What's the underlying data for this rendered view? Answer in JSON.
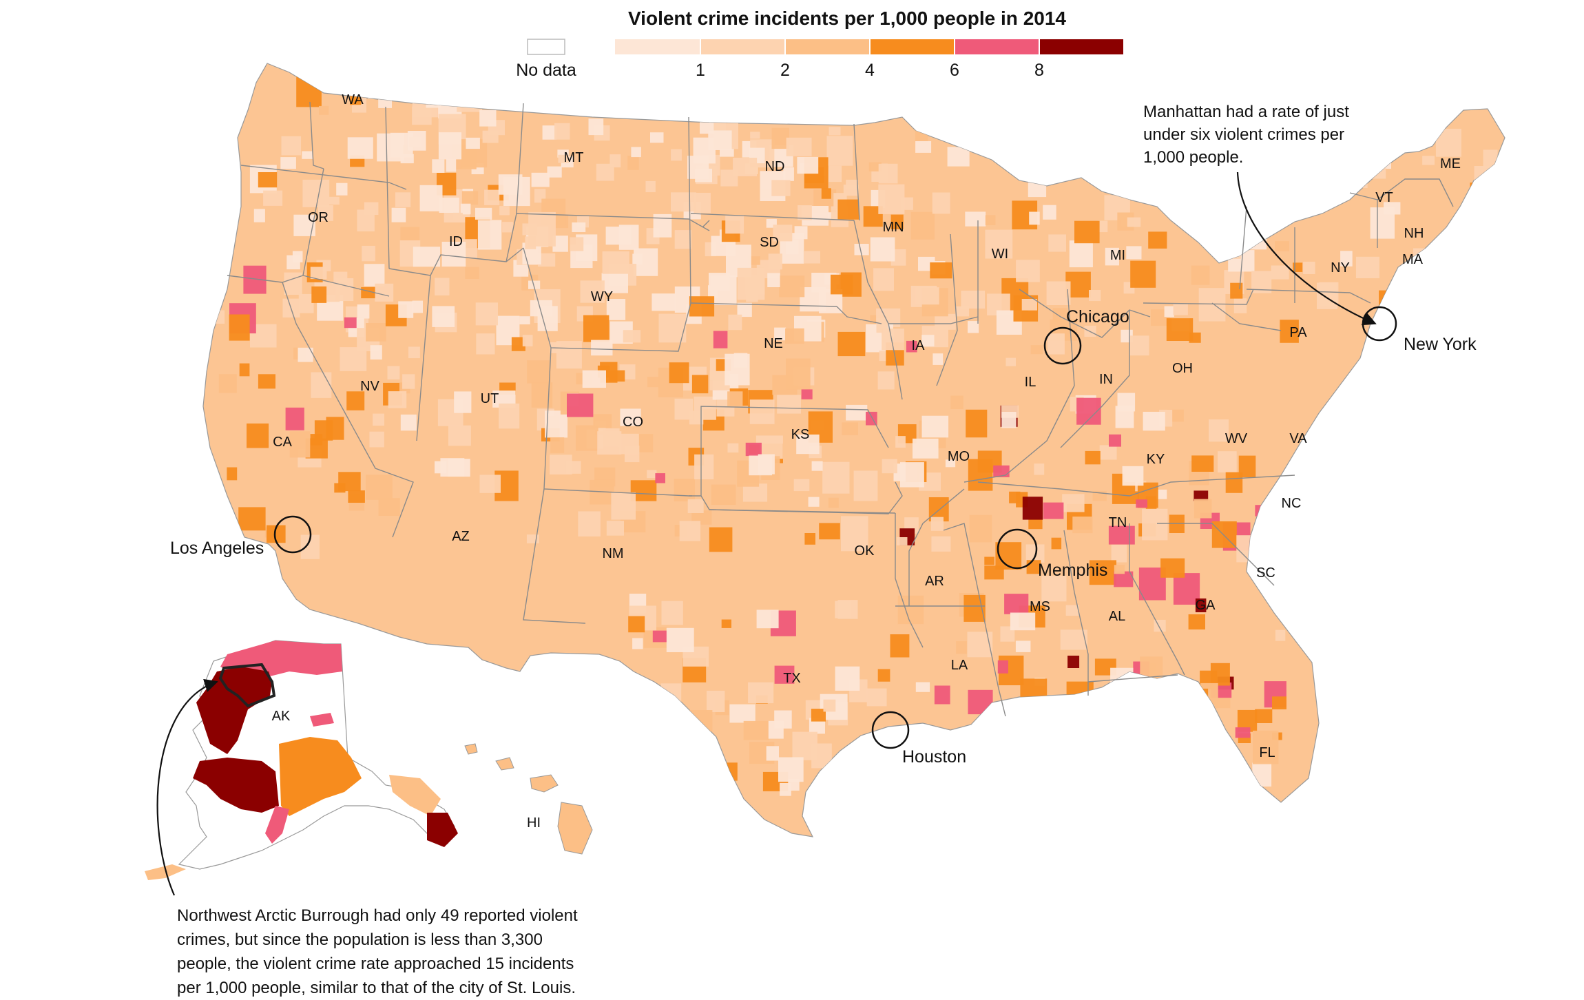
{
  "title": "Violent crime incidents per 1,000 people in 2014",
  "legend": {
    "no_data_label": "No data",
    "ticks": [
      "1",
      "2",
      "4",
      "6",
      "8"
    ],
    "bins": [
      {
        "range": "0–1",
        "color": "#fde6d6"
      },
      {
        "range": "1–2",
        "color": "#fdd3b0"
      },
      {
        "range": "2–4",
        "color": "#fcbf86"
      },
      {
        "range": "4–6",
        "color": "#f78c1e"
      },
      {
        "range": "6–8",
        "color": "#ef5a79"
      },
      {
        "range": "8+",
        "color": "#8b0000"
      }
    ],
    "no_data_color": "#ffffff"
  },
  "states": [
    "WA",
    "MT",
    "ND",
    "OR",
    "ID",
    "SD",
    "MN",
    "WI",
    "MI",
    "WY",
    "NE",
    "IA",
    "IL",
    "IN",
    "OH",
    "PA",
    "NY",
    "VT",
    "NH",
    "ME",
    "MA",
    "NV",
    "UT",
    "CO",
    "KS",
    "MO",
    "KY",
    "WV",
    "VA",
    "CA",
    "AZ",
    "NM",
    "OK",
    "TN",
    "NC",
    "AR",
    "SC",
    "MS",
    "AL",
    "GA",
    "TX",
    "LA",
    "FL",
    "AK",
    "HI"
  ],
  "cities": [
    "Chicago",
    "New York",
    "Memphis",
    "Los Angeles",
    "Houston"
  ],
  "annotations": {
    "manhattan": [
      "Manhattan had a rate of just",
      "under six violent crimes per",
      "1,000 people."
    ],
    "arctic": [
      "Northwest Arctic Burrough had only 49 reported violent",
      "crimes, but since the population is less than 3,300",
      "people, the violent crime rate approached 15 incidents",
      "per 1,000 people, similar to that of the city of St. Louis."
    ]
  }
}
